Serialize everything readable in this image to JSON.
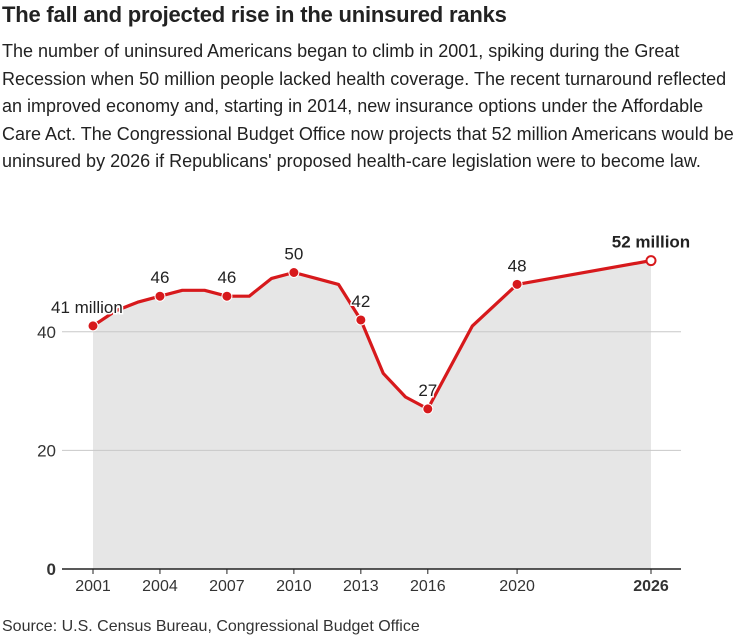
{
  "header": {
    "title": "The fall and projected rise in the uninsured ranks",
    "description": "The number of uninsured Americans began to climb in 2001, spiking during the Great Recession when 50 million people lacked health coverage. The recent turnaround reflected an improved economy and, starting in 2014, new insurance options under the Affordable Care Act. The Congressional Budget Office now projects that 52 million Americans would be uninsured by 2026 if Republicans' proposed health-care legislation were to become law."
  },
  "footer": {
    "source": "Source: U.S. Census Bureau, Congressional Budget Office"
  },
  "colors": {
    "line": "#d7191c",
    "area": "#e6e6e6",
    "grid": "#c8c8c8",
    "axis": "#222222"
  },
  "chart_data": {
    "type": "area",
    "title": "",
    "xlabel": "",
    "ylabel": "",
    "xlim": [
      2001,
      2026
    ],
    "ylim": [
      0,
      52
    ],
    "grid": true,
    "x_ticks": [
      {
        "value": 2001,
        "label": "2001"
      },
      {
        "value": 2004,
        "label": "2004"
      },
      {
        "value": 2007,
        "label": "2007"
      },
      {
        "value": 2010,
        "label": "2010"
      },
      {
        "value": 2013,
        "label": "2013"
      },
      {
        "value": 2016,
        "label": "2016"
      },
      {
        "value": 2020,
        "label": "2020"
      },
      {
        "value": 2026,
        "label": "2026",
        "bold": true
      }
    ],
    "y_ticks": [
      {
        "value": 0,
        "label": "0",
        "bold": true
      },
      {
        "value": 20,
        "label": "20"
      },
      {
        "value": 40,
        "label": "40"
      }
    ],
    "series": [
      {
        "name": "",
        "points": [
          {
            "x": 2001,
            "y": 41,
            "marker": true,
            "label": "41 million"
          },
          {
            "x": 2002,
            "y": 43.5
          },
          {
            "x": 2003,
            "y": 45
          },
          {
            "x": 2004,
            "y": 46,
            "marker": true,
            "label": "46"
          },
          {
            "x": 2005,
            "y": 47
          },
          {
            "x": 2006,
            "y": 47
          },
          {
            "x": 2007,
            "y": 46,
            "marker": true,
            "label": "46"
          },
          {
            "x": 2008,
            "y": 46
          },
          {
            "x": 2009,
            "y": 49
          },
          {
            "x": 2010,
            "y": 50,
            "marker": true,
            "label": "50"
          },
          {
            "x": 2011,
            "y": 49
          },
          {
            "x": 2012,
            "y": 48
          },
          {
            "x": 2013,
            "y": 42,
            "marker": true,
            "label": "42"
          },
          {
            "x": 2014,
            "y": 33
          },
          {
            "x": 2015,
            "y": 29
          },
          {
            "x": 2016,
            "y": 27,
            "marker": true,
            "label": "27"
          },
          {
            "x": 2018,
            "y": 41
          },
          {
            "x": 2020,
            "y": 48,
            "marker": true,
            "label": "48"
          },
          {
            "x": 2026,
            "y": 52,
            "marker": "open",
            "label": "52 million",
            "label_bold": true
          }
        ]
      }
    ]
  }
}
